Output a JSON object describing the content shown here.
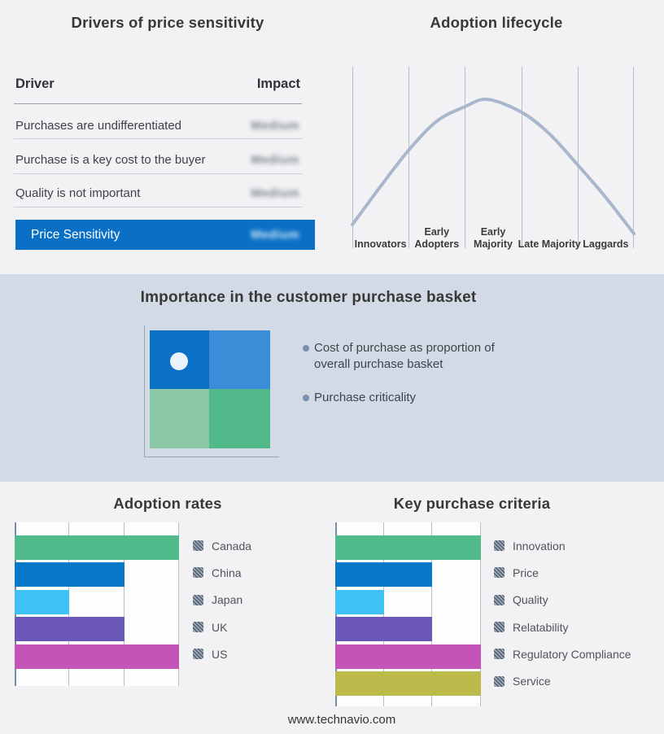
{
  "page": {
    "footer_url": "www.technavio.com",
    "colors": {
      "background": "#f2f2f4",
      "band_background": "#d2dbe5",
      "plot_background": "#fdfdfe",
      "grid_line": "#b2bfcc",
      "axis_line": "#7b8ca0",
      "curve": "#a9b7cc",
      "title_text": "#383838",
      "body_text": "#3f434b",
      "accent_blue": "#0a70c6"
    }
  },
  "basket_panel": {
    "title": "Importance in the customer purchase basket",
    "bullets": [
      "Cost of purchase as proportion of overall purchase basket",
      "Purchase criticality"
    ],
    "quadrants": {
      "top_left": "#0b71c6",
      "top_right": "#3a8ed8",
      "bottom_left": "#8cc8a6",
      "bottom_right": "#52ba8a"
    },
    "marker_color": "#e9f3fb",
    "bullet_dot_color": "#7b90ad"
  },
  "chart_data": [
    {
      "id": "drivers-of-price-sensitivity",
      "type": "table",
      "title": "Drivers of price sensitivity",
      "columns": [
        "Driver",
        "Impact"
      ],
      "rows": [
        [
          "Purchases are undifferentiated",
          "Medium"
        ],
        [
          "Purchase is a key cost to the buyer",
          "Medium"
        ],
        [
          "Quality is not important",
          "Medium"
        ]
      ],
      "highlight_row": [
        "Price Sensitivity",
        "Medium"
      ],
      "highlight_color": "#0a70c6",
      "impact_values_obscured": true
    },
    {
      "id": "adoption-lifecycle",
      "type": "line",
      "title": "Adoption lifecycle",
      "categories": [
        "Innovators",
        "Early Adopters",
        "Early Majority",
        "Late Majority",
        "Laggards"
      ],
      "shape": "bell-curve",
      "peak_category": "Early Majority",
      "y_axis_visible": false,
      "curve_points_norm": [
        [
          0,
          0.87
        ],
        [
          0.1,
          0.66
        ],
        [
          0.2,
          0.46
        ],
        [
          0.3,
          0.3
        ],
        [
          0.4,
          0.22
        ],
        [
          0.48,
          0.18
        ],
        [
          0.6,
          0.25
        ],
        [
          0.7,
          0.37
        ],
        [
          0.8,
          0.54
        ],
        [
          0.9,
          0.72
        ],
        [
          1,
          0.92
        ]
      ]
    },
    {
      "id": "adoption-rates",
      "type": "bar",
      "orientation": "horizontal",
      "title": "Adoption rates",
      "categories": [
        "Canada",
        "China",
        "Japan",
        "UK",
        "US"
      ],
      "values": [
        3,
        2,
        1,
        2,
        3
      ],
      "xlim": [
        0,
        3
      ],
      "x_tick_labels_visible": false,
      "grid": true,
      "legend_position": "right",
      "colors": [
        "#52bb8b",
        "#0878c8",
        "#3fc2f3",
        "#6b57b8",
        "#c454b8"
      ]
    },
    {
      "id": "key-purchase-criteria",
      "type": "bar",
      "orientation": "horizontal",
      "title": "Key purchase criteria",
      "categories": [
        "Innovation",
        "Price",
        "Quality",
        "Relatability",
        "Regulatory Compliance",
        "Service"
      ],
      "values": [
        3,
        2,
        1,
        2,
        3,
        3
      ],
      "xlim": [
        0,
        3
      ],
      "x_tick_labels_visible": false,
      "grid": true,
      "legend_position": "right",
      "colors": [
        "#52bb8b",
        "#0878c8",
        "#3fc2f3",
        "#6b57b8",
        "#c454b8",
        "#bcba4a"
      ]
    }
  ]
}
